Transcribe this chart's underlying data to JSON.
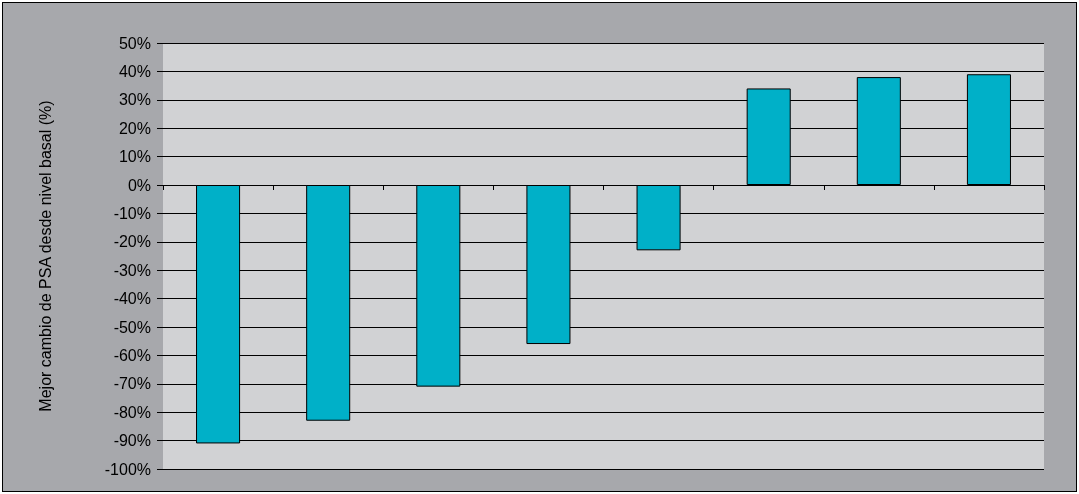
{
  "chart_data": {
    "type": "bar",
    "ylabel": "Mejor cambio de PSA desde nivel basal (%)",
    "categories": [
      null,
      null,
      null,
      null,
      null,
      null,
      null,
      null
    ],
    "values": [
      -91,
      -83,
      -71,
      -56,
      -23,
      34,
      38,
      39
    ],
    "color": "#00b0c8",
    "ylim": [
      -100,
      50
    ],
    "yticks": [
      {
        "value": -100,
        "label": "-100%"
      },
      {
        "value": -90,
        "label": "-90%"
      },
      {
        "value": -80,
        "label": "-80%"
      },
      {
        "value": -70,
        "label": "-70%"
      },
      {
        "value": -60,
        "label": "-60%"
      },
      {
        "value": -50,
        "label": "-50%"
      },
      {
        "value": -40,
        "label": "-40%"
      },
      {
        "value": -30,
        "label": "-30%"
      },
      {
        "value": -20,
        "label": "-20%"
      },
      {
        "value": -10,
        "label": "-10%"
      },
      {
        "value": 0,
        "label": "0%"
      },
      {
        "value": 10,
        "label": "10%"
      },
      {
        "value": 20,
        "label": "20%"
      },
      {
        "value": 30,
        "label": "30%"
      },
      {
        "value": 40,
        "label": "40%"
      },
      {
        "value": 50,
        "label": "50%"
      }
    ],
    "grid": "y"
  }
}
